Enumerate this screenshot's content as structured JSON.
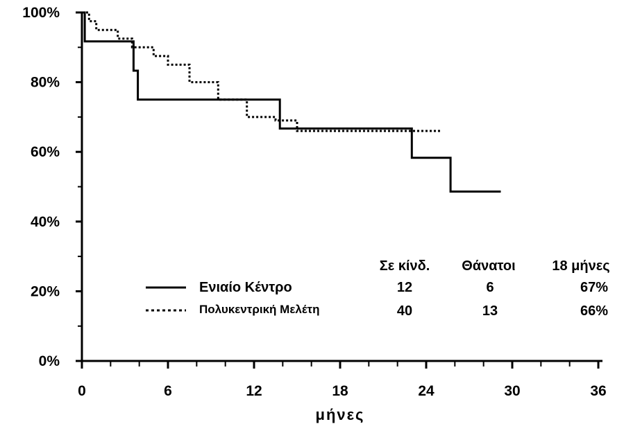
{
  "chart_data": {
    "type": "line",
    "xlabel": "μήνες",
    "x_ticks": [
      "0",
      "6",
      "12",
      "18",
      "24",
      "30",
      "36"
    ],
    "y_ticks": [
      "0%",
      "20%",
      "40%",
      "60%",
      "80%",
      "100%"
    ],
    "xlim": [
      0,
      36
    ],
    "ylim": [
      0,
      100
    ],
    "series": [
      {
        "name": "Ενιαίο Κέντρο",
        "style": "solid",
        "color": "#000000",
        "x": [
          0,
          0.2,
          0.2,
          3.6,
          3.6,
          3.9,
          3.9,
          13.8,
          13.8,
          23.0,
          23.0,
          25.7,
          25.7,
          29.2
        ],
        "y": [
          100,
          100,
          91.7,
          91.7,
          83.3,
          83.3,
          75,
          75,
          66.7,
          66.7,
          58.3,
          58.3,
          48.6,
          48.6
        ]
      },
      {
        "name": "Πολυκεντρική Μελέτη",
        "style": "dotted",
        "color": "#000000",
        "x": [
          0,
          0.5,
          0.5,
          1.0,
          1.0,
          2.5,
          2.5,
          3.5,
          3.5,
          5.0,
          5.0,
          6.0,
          6.0,
          7.5,
          7.5,
          9.5,
          9.5,
          11.5,
          11.5,
          13.5,
          13.5,
          15.0,
          15.0,
          25.0
        ],
        "y": [
          100,
          100,
          97.5,
          97.5,
          95,
          95,
          92.5,
          92.5,
          90,
          90,
          87.5,
          87.5,
          85,
          85,
          80,
          80,
          75,
          75,
          70,
          70,
          69,
          69,
          66,
          66
        ]
      }
    ]
  },
  "table": {
    "headers": [
      "Σε κίνδ.",
      "Θάνατοι",
      "18 μήνες"
    ],
    "rows": [
      {
        "label": "Ενιαίο Κέντρο",
        "at_risk": "12",
        "deaths": "6",
        "pct18": "67%"
      },
      {
        "label": "Πολυκεντρική Μελέτη",
        "at_risk": "40",
        "deaths": "13",
        "pct18": "66%"
      }
    ]
  }
}
